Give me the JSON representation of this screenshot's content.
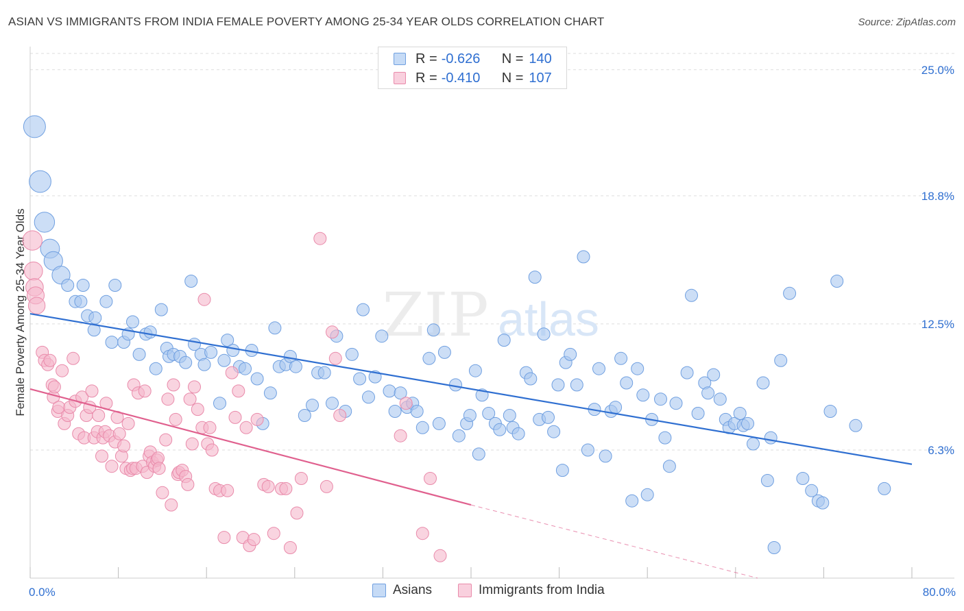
{
  "title": "ASIAN VS IMMIGRANTS FROM INDIA FEMALE POVERTY AMONG 25-34 YEAR OLDS CORRELATION CHART",
  "source": "Source: ZipAtlas.com",
  "watermark": {
    "zip": "ZIP",
    "atlas": "atlas"
  },
  "legend": {
    "rows": [
      {
        "r_label": "R =",
        "r_value": "-0.626",
        "n_label": "N =",
        "n_value": "140"
      },
      {
        "r_label": "R =",
        "r_value": "-0.410",
        "n_label": "N =",
        "n_value": "107"
      }
    ]
  },
  "colors": {
    "blue_fill": "#aac8f0",
    "blue_stroke": "#6f9fe0",
    "blue_line": "#2f6fd1",
    "pink_fill": "#f5b8cc",
    "pink_stroke": "#e98aaa",
    "pink_line": "#e0608e",
    "accent_text": "#2f6fd1",
    "grid": "#dddddd"
  },
  "chart_data": {
    "type": "scatter",
    "title": "ASIAN VS IMMIGRANTS FROM INDIA FEMALE POVERTY AMONG 25-34 YEAR OLDS CORRELATION CHART",
    "xlabel": "",
    "ylabel": "Female Poverty Among 25-34 Year Olds",
    "xlim": [
      0,
      80
    ],
    "ylim": [
      0,
      25.8
    ],
    "x_tick_labels": [
      "0.0%",
      "80.0%"
    ],
    "y_ticks": [
      6.3,
      12.5,
      18.8,
      25.0
    ],
    "y_tick_labels": [
      "6.3%",
      "12.5%",
      "18.8%",
      "25.0%"
    ],
    "grid": true,
    "legend_position": "top-center",
    "series": [
      {
        "name": "Asians",
        "r": -0.626,
        "n": 140,
        "trend": {
          "x": [
            0,
            80
          ],
          "y": [
            13.0,
            5.6
          ]
        },
        "points": [
          [
            0.4,
            22.2
          ],
          [
            0.9,
            19.5
          ],
          [
            1.3,
            17.5
          ],
          [
            1.8,
            16.2
          ],
          [
            2.1,
            15.6
          ],
          [
            2.8,
            14.9
          ],
          [
            3.4,
            14.4
          ],
          [
            4.1,
            13.6
          ],
          [
            4.6,
            13.6
          ],
          [
            4.8,
            14.4
          ],
          [
            5.2,
            12.9
          ],
          [
            5.9,
            12.8
          ],
          [
            5.8,
            12.2
          ],
          [
            6.9,
            13.6
          ],
          [
            7.4,
            11.6
          ],
          [
            7.7,
            14.4
          ],
          [
            8.5,
            11.6
          ],
          [
            8.9,
            12.0
          ],
          [
            9.3,
            12.6
          ],
          [
            9.9,
            11.0
          ],
          [
            10.5,
            12.0
          ],
          [
            10.9,
            12.1
          ],
          [
            11.4,
            10.3
          ],
          [
            11.9,
            13.2
          ],
          [
            12.4,
            11.3
          ],
          [
            12.6,
            10.9
          ],
          [
            13.0,
            11.0
          ],
          [
            13.6,
            10.9
          ],
          [
            14.1,
            10.6
          ],
          [
            14.6,
            14.6
          ],
          [
            14.9,
            11.5
          ],
          [
            15.5,
            11.0
          ],
          [
            15.8,
            10.5
          ],
          [
            16.4,
            11.1
          ],
          [
            17.2,
            8.6
          ],
          [
            17.6,
            10.7
          ],
          [
            17.9,
            11.7
          ],
          [
            18.4,
            11.2
          ],
          [
            19.0,
            10.4
          ],
          [
            19.5,
            10.3
          ],
          [
            20.1,
            11.2
          ],
          [
            20.6,
            9.8
          ],
          [
            21.1,
            7.6
          ],
          [
            21.8,
            9.1
          ],
          [
            22.2,
            12.3
          ],
          [
            22.6,
            10.4
          ],
          [
            23.2,
            10.5
          ],
          [
            23.6,
            10.9
          ],
          [
            24.1,
            10.4
          ],
          [
            24.9,
            8.0
          ],
          [
            25.6,
            8.5
          ],
          [
            26.1,
            10.1
          ],
          [
            26.7,
            10.1
          ],
          [
            27.4,
            8.6
          ],
          [
            27.8,
            11.9
          ],
          [
            28.6,
            8.2
          ],
          [
            29.2,
            11.0
          ],
          [
            29.9,
            9.8
          ],
          [
            30.2,
            13.2
          ],
          [
            30.7,
            8.9
          ],
          [
            31.3,
            9.9
          ],
          [
            31.9,
            11.9
          ],
          [
            32.6,
            9.2
          ],
          [
            33.1,
            8.2
          ],
          [
            33.6,
            9.1
          ],
          [
            34.2,
            8.4
          ],
          [
            34.7,
            8.6
          ],
          [
            35.1,
            8.2
          ],
          [
            35.6,
            7.4
          ],
          [
            36.2,
            10.8
          ],
          [
            36.6,
            12.2
          ],
          [
            37.1,
            7.6
          ],
          [
            37.6,
            11.1
          ],
          [
            38.6,
            9.5
          ],
          [
            38.9,
            7.0
          ],
          [
            39.6,
            7.6
          ],
          [
            39.9,
            8.0
          ],
          [
            40.4,
            10.2
          ],
          [
            40.7,
            6.1
          ],
          [
            41.0,
            9.0
          ],
          [
            41.6,
            8.1
          ],
          [
            42.2,
            7.6
          ],
          [
            42.6,
            7.3
          ],
          [
            43.0,
            11.7
          ],
          [
            43.5,
            8.0
          ],
          [
            43.8,
            7.4
          ],
          [
            44.3,
            7.1
          ],
          [
            45.0,
            10.1
          ],
          [
            45.4,
            9.8
          ],
          [
            45.8,
            14.8
          ],
          [
            46.2,
            7.8
          ],
          [
            46.6,
            12.0
          ],
          [
            47.0,
            7.9
          ],
          [
            47.5,
            7.2
          ],
          [
            47.9,
            9.5
          ],
          [
            48.3,
            5.3
          ],
          [
            48.6,
            10.6
          ],
          [
            49.0,
            11.0
          ],
          [
            49.6,
            9.5
          ],
          [
            50.2,
            15.8
          ],
          [
            50.6,
            6.3
          ],
          [
            51.2,
            8.3
          ],
          [
            51.6,
            10.3
          ],
          [
            52.2,
            6.0
          ],
          [
            52.7,
            8.2
          ],
          [
            53.1,
            8.4
          ],
          [
            53.6,
            10.8
          ],
          [
            54.1,
            9.6
          ],
          [
            54.6,
            3.8
          ],
          [
            55.1,
            10.3
          ],
          [
            55.6,
            9.0
          ],
          [
            56.0,
            4.1
          ],
          [
            56.4,
            7.8
          ],
          [
            57.2,
            8.8
          ],
          [
            57.6,
            6.9
          ],
          [
            58.0,
            5.5
          ],
          [
            58.6,
            8.6
          ],
          [
            59.6,
            10.1
          ],
          [
            60.0,
            13.9
          ],
          [
            60.6,
            8.1
          ],
          [
            61.2,
            9.6
          ],
          [
            61.5,
            9.1
          ],
          [
            62.0,
            10.0
          ],
          [
            62.6,
            8.8
          ],
          [
            63.1,
            7.8
          ],
          [
            63.4,
            7.4
          ],
          [
            63.9,
            7.6
          ],
          [
            64.4,
            8.1
          ],
          [
            64.7,
            7.5
          ],
          [
            65.1,
            7.6
          ],
          [
            65.6,
            6.6
          ],
          [
            66.5,
            9.6
          ],
          [
            66.9,
            4.8
          ],
          [
            67.2,
            6.9
          ],
          [
            67.5,
            1.5
          ],
          [
            68.1,
            10.7
          ],
          [
            68.9,
            14.0
          ],
          [
            70.1,
            4.9
          ],
          [
            70.9,
            4.3
          ],
          [
            71.5,
            3.8
          ],
          [
            71.9,
            3.7
          ],
          [
            72.6,
            8.2
          ],
          [
            73.2,
            14.6
          ],
          [
            74.9,
            7.5
          ],
          [
            77.5,
            4.4
          ]
        ]
      },
      {
        "name": "Immigrants from India",
        "r": -0.41,
        "n": 107,
        "trend": {
          "x": [
            0,
            40
          ],
          "y": [
            9.3,
            3.6
          ]
        },
        "trend_dashed": {
          "x": [
            40,
            66
          ],
          "y": [
            3.6,
            0.0
          ]
        },
        "points": [
          [
            0.2,
            16.6
          ],
          [
            0.3,
            15.1
          ],
          [
            0.4,
            14.3
          ],
          [
            0.5,
            13.9
          ],
          [
            0.6,
            13.4
          ],
          [
            1.1,
            11.1
          ],
          [
            1.3,
            10.7
          ],
          [
            1.6,
            10.5
          ],
          [
            1.8,
            10.7
          ],
          [
            2.0,
            9.5
          ],
          [
            2.1,
            8.9
          ],
          [
            2.2,
            9.4
          ],
          [
            2.5,
            8.2
          ],
          [
            2.6,
            8.4
          ],
          [
            2.9,
            10.2
          ],
          [
            3.1,
            7.6
          ],
          [
            3.4,
            8.0
          ],
          [
            3.6,
            8.4
          ],
          [
            3.9,
            10.8
          ],
          [
            4.1,
            8.7
          ],
          [
            4.4,
            7.1
          ],
          [
            4.7,
            8.9
          ],
          [
            4.9,
            6.9
          ],
          [
            5.1,
            8.0
          ],
          [
            5.4,
            8.4
          ],
          [
            5.6,
            9.2
          ],
          [
            5.8,
            6.9
          ],
          [
            6.1,
            7.2
          ],
          [
            6.2,
            8.0
          ],
          [
            6.5,
            6.0
          ],
          [
            6.6,
            6.9
          ],
          [
            6.8,
            7.2
          ],
          [
            6.9,
            8.6
          ],
          [
            7.2,
            7.0
          ],
          [
            7.4,
            5.5
          ],
          [
            7.7,
            6.7
          ],
          [
            7.9,
            7.9
          ],
          [
            8.1,
            7.1
          ],
          [
            8.3,
            6.0
          ],
          [
            8.5,
            6.5
          ],
          [
            8.7,
            5.4
          ],
          [
            8.9,
            7.6
          ],
          [
            9.1,
            5.3
          ],
          [
            9.3,
            5.4
          ],
          [
            9.4,
            9.5
          ],
          [
            9.6,
            5.4
          ],
          [
            9.8,
            9.1
          ],
          [
            10.2,
            5.5
          ],
          [
            10.4,
            9.2
          ],
          [
            10.6,
            5.2
          ],
          [
            10.8,
            6.0
          ],
          [
            10.9,
            6.2
          ],
          [
            11.1,
            5.7
          ],
          [
            11.3,
            5.5
          ],
          [
            11.5,
            5.8
          ],
          [
            11.6,
            5.9
          ],
          [
            11.7,
            5.4
          ],
          [
            12.0,
            4.2
          ],
          [
            12.3,
            6.8
          ],
          [
            12.5,
            8.8
          ],
          [
            12.8,
            3.6
          ],
          [
            13.0,
            9.5
          ],
          [
            13.2,
            7.8
          ],
          [
            13.4,
            5.1
          ],
          [
            13.5,
            5.2
          ],
          [
            13.8,
            5.3
          ],
          [
            14.1,
            5.0
          ],
          [
            14.3,
            4.6
          ],
          [
            14.5,
            8.8
          ],
          [
            14.7,
            6.6
          ],
          [
            14.9,
            9.4
          ],
          [
            15.2,
            8.3
          ],
          [
            15.6,
            7.4
          ],
          [
            15.8,
            13.7
          ],
          [
            16.1,
            6.6
          ],
          [
            16.3,
            7.4
          ],
          [
            16.5,
            6.3
          ],
          [
            16.8,
            4.4
          ],
          [
            17.2,
            4.3
          ],
          [
            17.6,
            2.0
          ],
          [
            17.9,
            4.3
          ],
          [
            18.3,
            10.1
          ],
          [
            18.6,
            7.9
          ],
          [
            18.9,
            9.2
          ],
          [
            19.3,
            2.0
          ],
          [
            19.6,
            7.4
          ],
          [
            19.9,
            1.6
          ],
          [
            20.3,
            1.9
          ],
          [
            20.6,
            7.8
          ],
          [
            21.2,
            4.6
          ],
          [
            21.6,
            4.5
          ],
          [
            22.1,
            2.2
          ],
          [
            22.8,
            4.4
          ],
          [
            23.2,
            4.4
          ],
          [
            23.6,
            1.5
          ],
          [
            24.2,
            3.2
          ],
          [
            24.6,
            4.9
          ],
          [
            26.3,
            16.7
          ],
          [
            26.9,
            4.5
          ],
          [
            27.4,
            12.1
          ],
          [
            27.7,
            10.8
          ],
          [
            28.1,
            8.0
          ],
          [
            33.6,
            7.0
          ],
          [
            34.1,
            8.6
          ],
          [
            35.6,
            2.2
          ],
          [
            36.3,
            4.9
          ],
          [
            37.2,
            1.1
          ]
        ]
      }
    ]
  },
  "bottom_legend": {
    "items": [
      "Asians",
      "Immigrants from India"
    ]
  }
}
